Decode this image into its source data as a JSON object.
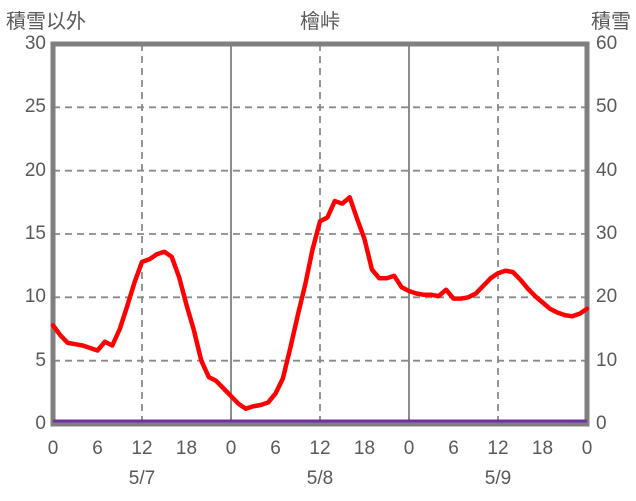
{
  "header": {
    "left_axis_title": "積雪以外",
    "chart_title": "檜峠",
    "right_axis_title": "積雪"
  },
  "chart_data": {
    "type": "line",
    "title": "檜峠",
    "left_axis": {
      "title": "積雪以外",
      "min": 0,
      "max": 30,
      "tick_labels": [
        "30",
        "25",
        "20",
        "15",
        "10",
        "5",
        "0"
      ]
    },
    "right_axis": {
      "title": "積雪",
      "min": 0,
      "max": 60,
      "tick_labels": [
        "60",
        "50",
        "40",
        "30",
        "20",
        "10",
        "0"
      ]
    },
    "x_axis": {
      "total_hours": 72,
      "tick_interval_hours": 6,
      "tick_labels": [
        "0",
        "6",
        "12",
        "18",
        "0",
        "6",
        "12",
        "18",
        "0",
        "6",
        "12",
        "18",
        "0"
      ],
      "date_labels": [
        "5/7",
        "5/8",
        "5/9"
      ],
      "date_label_hours": [
        12,
        36,
        60
      ],
      "dashed_vertical_hours": [
        12,
        36,
        60
      ],
      "solid_vertical_hours": [
        24,
        48
      ]
    },
    "horizontal_gridline_values": [
      5,
      10,
      15,
      20,
      25
    ],
    "grid": true,
    "legend_position": "none",
    "series": [
      {
        "name": "積雪以外",
        "axis": "left",
        "color": "#ff0000",
        "line_width": 4.5,
        "start_hour": 0,
        "step_hours": 1,
        "values": [
          7.8,
          7.0,
          6.4,
          6.3,
          6.2,
          6.0,
          5.8,
          6.5,
          6.2,
          7.5,
          9.3,
          11.2,
          12.8,
          13.0,
          13.4,
          13.6,
          13.2,
          11.6,
          9.4,
          7.4,
          5.0,
          3.7,
          3.4,
          2.8,
          2.2,
          1.6,
          1.2,
          1.4,
          1.5,
          1.7,
          2.4,
          3.6,
          6.0,
          8.6,
          11.0,
          13.8,
          16.0,
          16.3,
          17.6,
          17.4,
          17.9,
          16.2,
          14.6,
          12.2,
          11.5,
          11.5,
          11.7,
          10.8,
          10.5,
          10.3,
          10.2,
          10.2,
          10.1,
          10.6,
          9.9,
          9.9,
          10.0,
          10.3,
          10.9,
          11.5,
          11.9,
          12.1,
          12.0,
          11.4,
          10.7,
          10.1,
          9.6,
          9.1,
          8.8,
          8.6,
          8.5,
          8.7,
          9.1
        ]
      },
      {
        "name": "積雪",
        "axis": "right",
        "color": "#7030a0",
        "line_width": 3,
        "constant_value": 0
      }
    ],
    "style": {
      "axis_border_color": "#7f7f7f",
      "gridline_color": "#8a8a8a",
      "text_color": "#595959",
      "background": "#ffffff"
    }
  }
}
